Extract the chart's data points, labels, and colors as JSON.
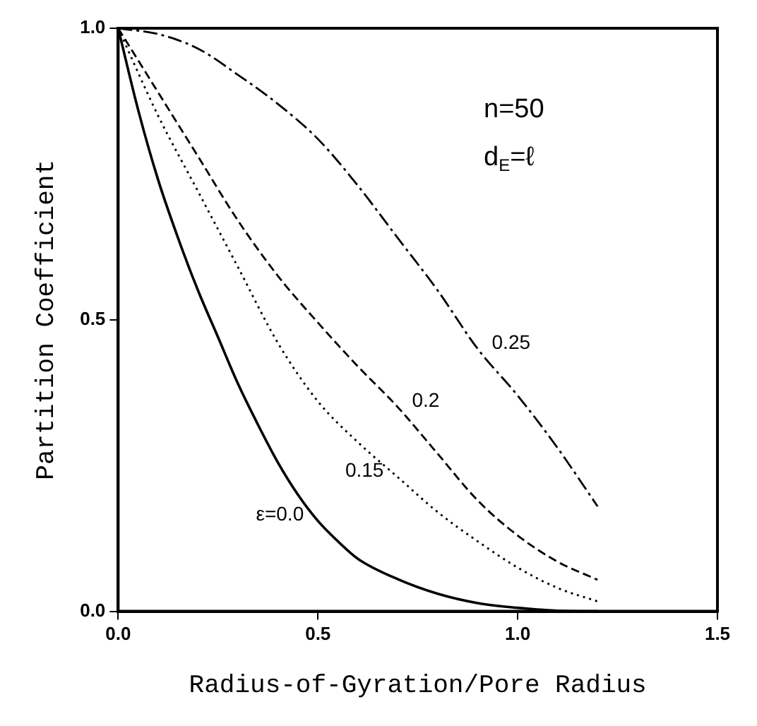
{
  "chart_data": {
    "type": "line",
    "xlabel": "Radius-of-Gyration/Pore Radius",
    "ylabel": "Partition Coefficient",
    "xlim": [
      0,
      1.5
    ],
    "ylim": [
      0,
      1
    ],
    "xticks": [
      {
        "value": 0,
        "label": "0.0"
      },
      {
        "value": 0.5,
        "label": "0.5"
      },
      {
        "value": 1,
        "label": "1.0"
      },
      {
        "value": 1.5,
        "label": "1.5"
      }
    ],
    "yticks": [
      {
        "value": 0,
        "label": "0.0"
      },
      {
        "value": 0.5,
        "label": "0.5"
      },
      {
        "value": 1,
        "label": "1.0"
      }
    ],
    "grid": false,
    "legend": false,
    "marker": "none",
    "x": [
      0,
      0.05,
      0.1,
      0.15,
      0.2,
      0.25,
      0.3,
      0.35,
      0.4,
      0.45,
      0.5,
      0.55,
      0.6,
      0.7,
      0.8,
      0.9,
      1.0,
      1.1,
      1.2
    ],
    "series": [
      {
        "name": "ε=0.0",
        "color": "#000000",
        "line_style": "solid",
        "values": [
          1.0,
          0.86,
          0.74,
          0.64,
          0.55,
          0.47,
          0.39,
          0.32,
          0.255,
          0.2,
          0.155,
          0.12,
          0.09,
          0.055,
          0.03,
          0.014,
          0.006,
          0.001,
          0
        ]
      },
      {
        "name": "0.15",
        "color": "#000000",
        "line_style": "dotted",
        "x": [
          0,
          0.1,
          0.2,
          0.3,
          0.4,
          0.5,
          0.6,
          0.7,
          0.8,
          0.9,
          1.0,
          1.1,
          1.2
        ],
        "values": [
          1.0,
          0.85,
          0.72,
          0.59,
          0.46,
          0.36,
          0.29,
          0.23,
          0.17,
          0.12,
          0.075,
          0.04,
          0.017
        ]
      },
      {
        "name": "0.2",
        "color": "#000000",
        "line_style": "dashed",
        "x": [
          0,
          0.1,
          0.2,
          0.3,
          0.4,
          0.5,
          0.6,
          0.7,
          0.8,
          0.9,
          1.0,
          1.1,
          1.2
        ],
        "values": [
          1.0,
          0.89,
          0.78,
          0.67,
          0.575,
          0.495,
          0.42,
          0.35,
          0.27,
          0.19,
          0.13,
          0.085,
          0.054
        ]
      },
      {
        "name": "0.25",
        "color": "#000000",
        "line_style": "dashdot",
        "x": [
          0,
          0.1,
          0.2,
          0.3,
          0.4,
          0.5,
          0.6,
          0.7,
          0.8,
          0.9,
          1.0,
          1.1,
          1.2
        ],
        "values": [
          1.0,
          0.99,
          0.965,
          0.92,
          0.87,
          0.81,
          0.73,
          0.64,
          0.55,
          0.45,
          0.37,
          0.28,
          0.18
        ]
      }
    ],
    "annotations": [
      "n=50",
      "d$_{E}$=ℓ"
    ]
  }
}
